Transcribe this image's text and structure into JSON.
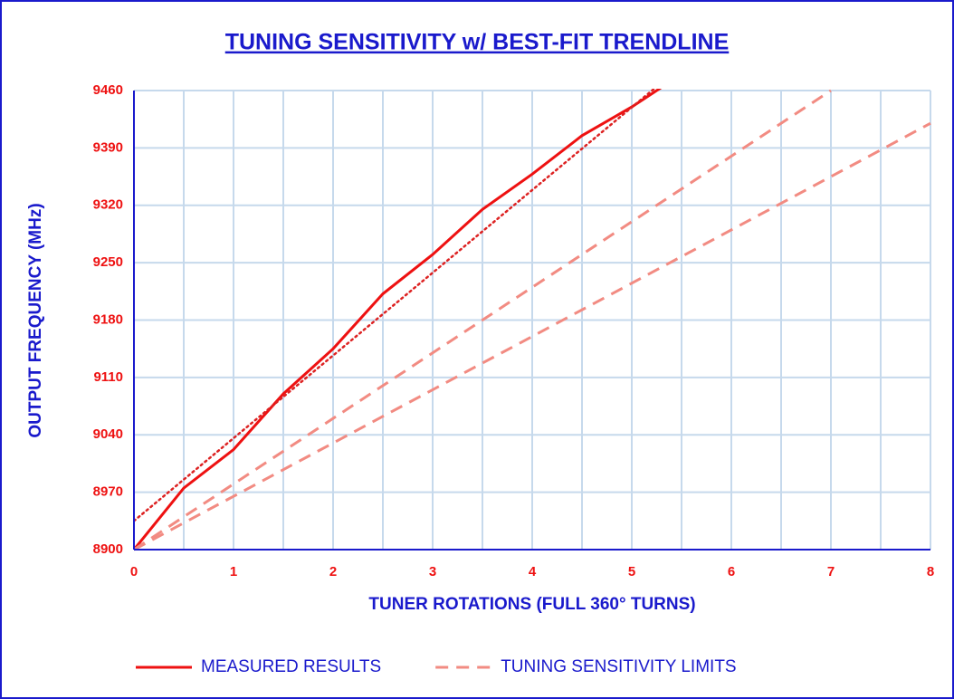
{
  "chart_data": {
    "type": "line",
    "title": "TUNING SENSITIVITY w/ BEST-FIT TRENDLINE",
    "x_label": "TUNER ROTATIONS (FULL 360° TURNS)",
    "y_label": "OUTPUT FREQUENCY (MHz)",
    "xlim": [
      0,
      8
    ],
    "ylim": [
      8900,
      9460
    ],
    "xticks": [
      0,
      1,
      2,
      3,
      4,
      5,
      6,
      7,
      8
    ],
    "yticks": [
      8900,
      8970,
      9040,
      9110,
      9180,
      9250,
      9320,
      9390,
      9460
    ],
    "x_minor_grid": [
      0.5,
      1.5,
      2.5,
      3.5,
      4.5,
      5.5,
      6.5,
      7.5
    ],
    "grid": true,
    "legend": "bottom",
    "series": [
      {
        "name": "MEASURED RESULTS",
        "color": "#ee1111",
        "style": "solid",
        "x": [
          0,
          0.5,
          1,
          1.5,
          2,
          2.5,
          3,
          3.5,
          4,
          4.5,
          5,
          5.5
        ],
        "values": [
          8900,
          8975,
          9022,
          9090,
          9145,
          9212,
          9260,
          9315,
          9358,
          9405,
          9440,
          9480
        ]
      },
      {
        "color": "#dd2222",
        "style": "dotted",
        "x": [
          0,
          5.5
        ],
        "values": [
          8935,
          9490
        ]
      },
      {
        "name": "TUNING SENSITIVITY LIMITS",
        "color": "#f28b82",
        "style": "dashed",
        "x": [
          0,
          7
        ],
        "values": [
          8900,
          9460
        ]
      },
      {
        "color": "#f28b82",
        "style": "dashed",
        "x": [
          0,
          8
        ],
        "values": [
          8900,
          9420
        ]
      }
    ]
  }
}
